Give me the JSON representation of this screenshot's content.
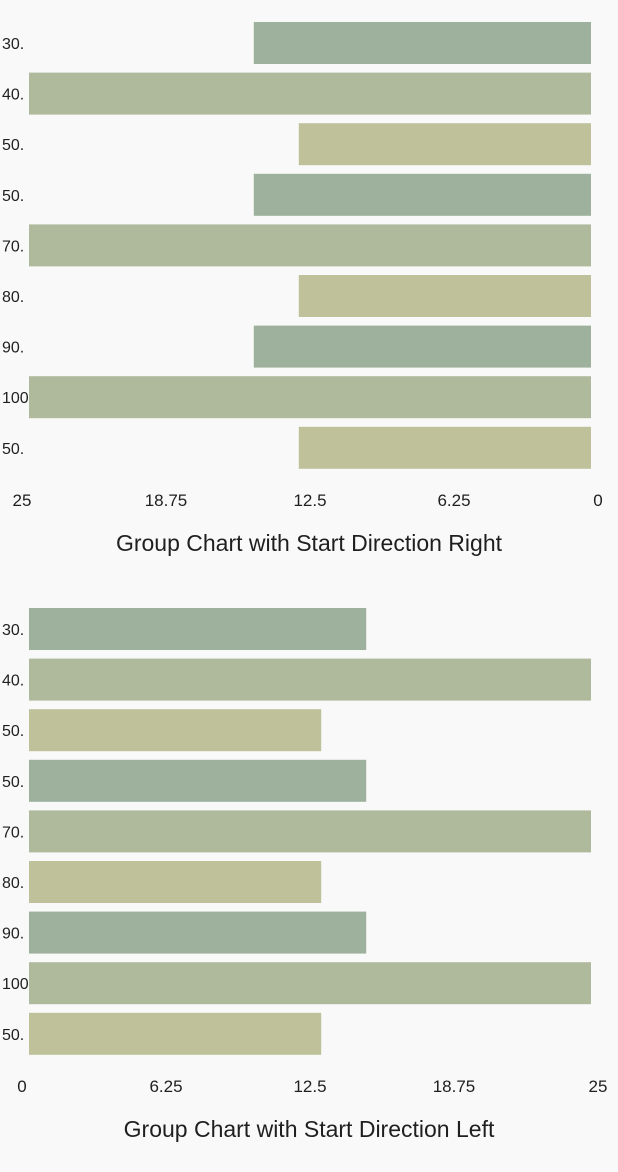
{
  "colors": {
    "background": "#f9f9f9",
    "series_a": "#9eb19c",
    "series_b": "#afba9d",
    "series_c": "#bfc19b",
    "text": "#1f1f1f"
  },
  "chart_data": [
    {
      "type": "bar",
      "orientation": "horizontal",
      "start_direction": "right",
      "title": "Group Chart with Start Direction Right",
      "categories": [
        "30.",
        "40.",
        "50.",
        "50.",
        "70.",
        "80.",
        "90.",
        "100",
        "50."
      ],
      "values": [
        15,
        25,
        13,
        15,
        25,
        13,
        15,
        25,
        13
      ],
      "bar_colors": [
        "#9eb19c",
        "#afba9d",
        "#bfc19b",
        "#9eb19c",
        "#afba9d",
        "#bfc19b",
        "#9eb19c",
        "#afba9d",
        "#bfc19b"
      ],
      "x_ticks": [
        "25",
        "18.75",
        "12.5",
        "6.25",
        "0"
      ],
      "xlim": [
        0,
        25
      ],
      "xlabel": "",
      "ylabel": "",
      "grid": false
    },
    {
      "type": "bar",
      "orientation": "horizontal",
      "start_direction": "left",
      "title": "Group Chart with Start Direction Left",
      "categories": [
        "30.",
        "40.",
        "50.",
        "50.",
        "70.",
        "80.",
        "90.",
        "100",
        "50."
      ],
      "values": [
        15,
        25,
        13,
        15,
        25,
        13,
        15,
        25,
        13
      ],
      "bar_colors": [
        "#9eb19c",
        "#afba9d",
        "#bfc19b",
        "#9eb19c",
        "#afba9d",
        "#bfc19b",
        "#9eb19c",
        "#afba9d",
        "#bfc19b"
      ],
      "x_ticks": [
        "0",
        "6.25",
        "12.5",
        "18.75",
        "25"
      ],
      "xlim": [
        0,
        25
      ],
      "xlabel": "",
      "ylabel": "",
      "grid": false
    }
  ]
}
